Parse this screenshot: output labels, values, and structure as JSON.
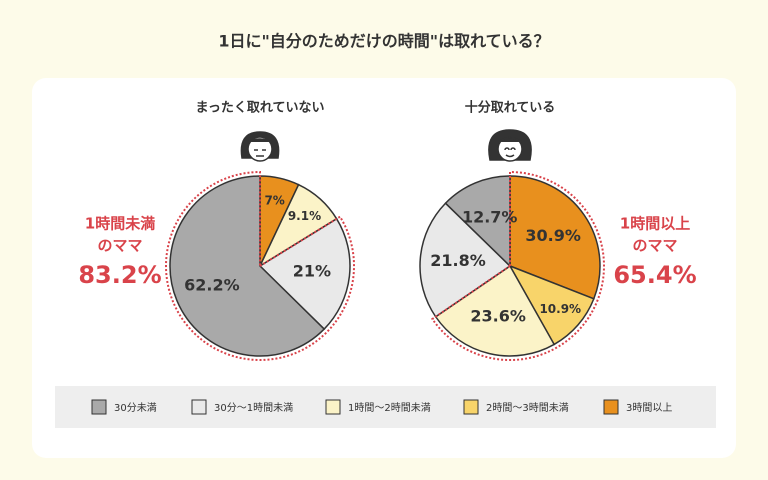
{
  "chart_data": {
    "type": "pie",
    "title": "1日に\"自分のためだけの時間\"は取れている？",
    "categories": [
      "30分未満",
      "30分〜1時間未満",
      "1時間〜2時間未満",
      "2時間〜3時間未満",
      "3時間以上"
    ],
    "colors": [
      "#a9a9a9",
      "#e9e9e9",
      "#fbf3c8",
      "#f8d46a",
      "#e8901e"
    ],
    "pies": [
      {
        "title": "まったく取れていない",
        "values": [
          62.2,
          21,
          9.1,
          null,
          7
        ],
        "value_labels": [
          "62.2%",
          "21%",
          "9.1%",
          null,
          "7%"
        ],
        "highlight": [
          0,
          1
        ],
        "callout": [
          "1時間未満",
          "のママ",
          "83.2%"
        ]
      },
      {
        "title": "十分取れている",
        "values": [
          12.7,
          21.8,
          23.6,
          10.9,
          30.9
        ],
        "value_labels": [
          "12.7%",
          "21.8%",
          "23.6%",
          "10.9%",
          "30.9%"
        ],
        "highlight": [
          2,
          3,
          4
        ],
        "callout": [
          "1時間以上",
          "のママ",
          "65.4%"
        ]
      }
    ]
  }
}
